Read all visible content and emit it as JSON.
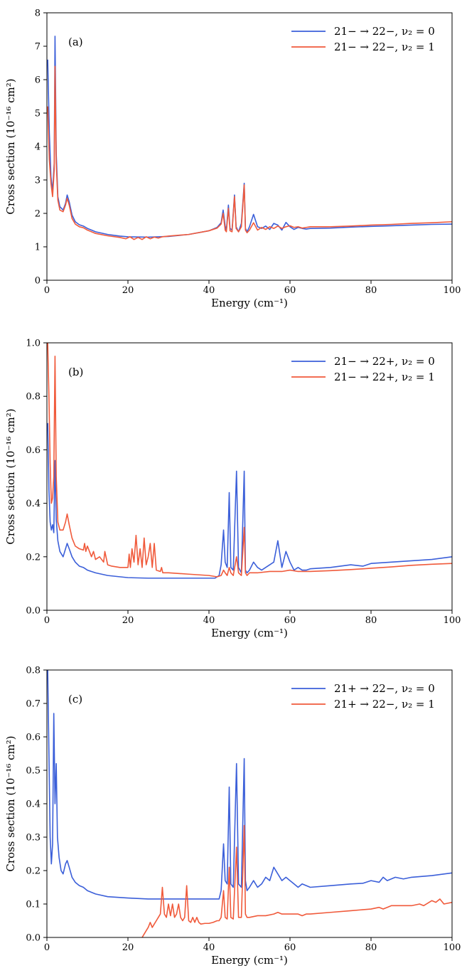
{
  "chart_data": [
    {
      "type": "line",
      "panel_label": "(a)",
      "xlabel": "Energy (cm⁻¹)",
      "ylabel": "Cross section (10⁻¹⁶ cm²)",
      "xlim": [
        0,
        100
      ],
      "ylim": [
        0,
        8
      ],
      "x_ticks": [
        0,
        20,
        40,
        60,
        80,
        100
      ],
      "y_ticks": [
        0,
        1,
        2,
        3,
        4,
        5,
        6,
        7,
        8
      ],
      "grid": false,
      "legend_position": "top-right",
      "series": [
        {
          "name": "21− → 22−, ν₂ = 0",
          "color": "#3b5fd9",
          "x": [
            0.2,
            0.6,
            1.0,
            1.4,
            1.8,
            2.0,
            2.3,
            2.7,
            3.2,
            4.0,
            4.6,
            5.0,
            5.5,
            6.2,
            7.0,
            8.0,
            9.0,
            10.0,
            12.0,
            15.0,
            18.0,
            20.0,
            25.0,
            30.0,
            35.0,
            40.0,
            42.0,
            43.0,
            43.5,
            44.0,
            44.3,
            44.8,
            45.2,
            45.7,
            46.3,
            46.7,
            47.3,
            48.0,
            48.7,
            49.0,
            49.4,
            50.0,
            51.0,
            52.0,
            53.0,
            54.0,
            55.0,
            56.0,
            57.0,
            58.0,
            59.0,
            60.0,
            61.0,
            62.0,
            63.0,
            64.0,
            65.0,
            70.0,
            75.0,
            80.0,
            85.0,
            90.0,
            95.0,
            100.0
          ],
          "values": [
            6.6,
            4.4,
            3.1,
            2.65,
            3.5,
            7.3,
            3.8,
            2.5,
            2.2,
            2.1,
            2.3,
            2.55,
            2.35,
            1.95,
            1.75,
            1.66,
            1.62,
            1.55,
            1.45,
            1.37,
            1.32,
            1.3,
            1.29,
            1.31,
            1.37,
            1.48,
            1.58,
            1.72,
            2.1,
            1.62,
            1.5,
            2.25,
            1.55,
            1.5,
            2.55,
            1.6,
            1.45,
            1.7,
            2.9,
            1.55,
            1.45,
            1.6,
            1.97,
            1.6,
            1.55,
            1.62,
            1.52,
            1.7,
            1.65,
            1.5,
            1.73,
            1.6,
            1.52,
            1.58,
            1.55,
            1.53,
            1.55,
            1.56,
            1.59,
            1.61,
            1.63,
            1.65,
            1.67,
            1.68
          ]
        },
        {
          "name": "21− → 22−, ν₂ = 1",
          "color": "#f05a3b",
          "x": [
            0.2,
            0.6,
            1.0,
            1.4,
            1.8,
            2.0,
            2.3,
            2.7,
            3.2,
            4.0,
            4.6,
            5.0,
            5.5,
            6.2,
            7.0,
            8.0,
            9.0,
            10.0,
            12.0,
            15.0,
            18.0,
            19.5,
            20.5,
            21.5,
            22.5,
            23.5,
            24.5,
            25.5,
            26.5,
            27.5,
            28.5,
            30.0,
            35.0,
            40.0,
            42.0,
            43.0,
            43.5,
            44.0,
            44.3,
            44.8,
            45.2,
            45.7,
            46.3,
            46.7,
            47.3,
            48.0,
            48.7,
            49.0,
            49.4,
            50.0,
            51.0,
            52.0,
            53.0,
            54.0,
            55.0,
            56.0,
            57.0,
            58.0,
            59.0,
            60.0,
            61.0,
            62.0,
            63.0,
            64.0,
            65.0,
            70.0,
            75.0,
            80.0,
            85.0,
            90.0,
            95.0,
            100.0
          ],
          "values": [
            5.2,
            3.6,
            2.9,
            2.5,
            3.3,
            6.4,
            3.5,
            2.4,
            2.1,
            2.05,
            2.25,
            2.45,
            2.25,
            1.85,
            1.68,
            1.6,
            1.57,
            1.5,
            1.4,
            1.33,
            1.28,
            1.24,
            1.3,
            1.22,
            1.28,
            1.22,
            1.3,
            1.24,
            1.29,
            1.26,
            1.3,
            1.32,
            1.37,
            1.48,
            1.56,
            1.68,
            2.0,
            1.5,
            1.45,
            2.15,
            1.48,
            1.45,
            2.5,
            1.55,
            1.45,
            1.6,
            2.85,
            1.5,
            1.42,
            1.5,
            1.72,
            1.5,
            1.58,
            1.52,
            1.6,
            1.55,
            1.62,
            1.55,
            1.6,
            1.63,
            1.58,
            1.6,
            1.56,
            1.58,
            1.6,
            1.6,
            1.62,
            1.65,
            1.67,
            1.7,
            1.72,
            1.75
          ]
        }
      ]
    },
    {
      "type": "line",
      "panel_label": "(b)",
      "xlabel": "Energy (cm⁻¹)",
      "ylabel": "Cross section (10⁻¹⁶ cm²)",
      "xlim": [
        0,
        100
      ],
      "ylim": [
        0,
        1
      ],
      "x_ticks": [
        0,
        20,
        40,
        60,
        80,
        100
      ],
      "y_ticks": [
        0.0,
        0.2,
        0.4,
        0.6,
        0.8,
        1.0
      ],
      "grid": false,
      "legend_position": "top-right",
      "series": [
        {
          "name": "21− → 22+, ν₂ = 0",
          "color": "#3b5fd9",
          "x": [
            0.2,
            0.5,
            0.8,
            1.1,
            1.4,
            1.7,
            2.0,
            2.3,
            2.7,
            3.2,
            4.0,
            4.6,
            5.0,
            5.5,
            6.2,
            7.0,
            8.0,
            9.0,
            10.0,
            12.0,
            15.0,
            20.0,
            25.0,
            30.0,
            35.0,
            40.0,
            41.5,
            42.5,
            43.0,
            43.6,
            44.0,
            44.5,
            45.0,
            45.4,
            46.0,
            46.8,
            47.3,
            48.0,
            48.7,
            49.0,
            49.4,
            50.0,
            51.0,
            52.0,
            53.0,
            54.0,
            55.0,
            56.0,
            57.0,
            58.0,
            59.0,
            60.0,
            61.0,
            62.0,
            63.0,
            64.0,
            65.0,
            70.0,
            75.0,
            78.0,
            80.0,
            85.0,
            90.0,
            95.0,
            100.0
          ],
          "values": [
            0.7,
            0.45,
            0.33,
            0.3,
            0.32,
            0.29,
            0.56,
            0.34,
            0.26,
            0.22,
            0.2,
            0.23,
            0.25,
            0.23,
            0.2,
            0.18,
            0.165,
            0.16,
            0.15,
            0.14,
            0.13,
            0.122,
            0.12,
            0.12,
            0.12,
            0.12,
            0.12,
            0.13,
            0.17,
            0.3,
            0.18,
            0.16,
            0.44,
            0.16,
            0.15,
            0.52,
            0.16,
            0.14,
            0.52,
            0.15,
            0.14,
            0.15,
            0.18,
            0.16,
            0.15,
            0.16,
            0.17,
            0.18,
            0.26,
            0.16,
            0.22,
            0.18,
            0.15,
            0.16,
            0.15,
            0.15,
            0.155,
            0.16,
            0.17,
            0.165,
            0.175,
            0.18,
            0.185,
            0.19,
            0.2
          ]
        },
        {
          "name": "21− → 22+, ν₂ = 1",
          "color": "#f05a3b",
          "x": [
            0.2,
            0.5,
            0.8,
            1.1,
            1.4,
            1.7,
            2.0,
            2.3,
            2.7,
            3.2,
            4.0,
            4.6,
            5.0,
            5.5,
            6.2,
            7.0,
            8.0,
            9.0,
            9.3,
            9.6,
            10.0,
            11.0,
            11.5,
            12.0,
            13.0,
            14.0,
            14.3,
            15.0,
            16.0,
            18.0,
            20.0,
            20.3,
            20.6,
            21.0,
            21.5,
            22.0,
            22.5,
            23.0,
            23.5,
            24.0,
            24.5,
            25.0,
            25.5,
            26.0,
            26.5,
            27.0,
            28.0,
            28.3,
            28.6,
            30.0,
            35.0,
            40.0,
            42.0,
            43.0,
            43.6,
            44.0,
            44.5,
            45.0,
            45.4,
            46.0,
            46.8,
            47.3,
            48.0,
            48.7,
            49.0,
            49.4,
            50.0,
            52.0,
            55.0,
            58.0,
            60.0,
            62.0,
            65.0,
            70.0,
            75.0,
            80.0,
            85.0,
            90.0,
            95.0,
            100.0
          ],
          "values": [
            1.0,
            0.8,
            0.55,
            0.4,
            0.42,
            0.5,
            0.95,
            0.5,
            0.33,
            0.3,
            0.3,
            0.33,
            0.36,
            0.32,
            0.27,
            0.24,
            0.23,
            0.225,
            0.25,
            0.22,
            0.24,
            0.2,
            0.22,
            0.19,
            0.2,
            0.18,
            0.22,
            0.17,
            0.165,
            0.16,
            0.16,
            0.21,
            0.16,
            0.23,
            0.18,
            0.28,
            0.17,
            0.23,
            0.16,
            0.27,
            0.17,
            0.2,
            0.25,
            0.16,
            0.25,
            0.15,
            0.145,
            0.16,
            0.14,
            0.14,
            0.135,
            0.13,
            0.125,
            0.13,
            0.15,
            0.14,
            0.13,
            0.16,
            0.14,
            0.13,
            0.2,
            0.14,
            0.13,
            0.31,
            0.14,
            0.13,
            0.14,
            0.14,
            0.145,
            0.145,
            0.15,
            0.145,
            0.145,
            0.148,
            0.152,
            0.157,
            0.162,
            0.168,
            0.172,
            0.175
          ]
        }
      ]
    },
    {
      "type": "line",
      "panel_label": "(c)",
      "xlabel": "Energy (cm⁻¹)",
      "ylabel": "Cross section (10⁻¹⁶ cm²)",
      "xlim": [
        0,
        100
      ],
      "ylim": [
        0,
        0.8
      ],
      "x_ticks": [
        0,
        20,
        40,
        60,
        80,
        100
      ],
      "y_ticks": [
        0.0,
        0.1,
        0.2,
        0.3,
        0.4,
        0.5,
        0.6,
        0.7,
        0.8
      ],
      "grid": false,
      "legend_position": "top-right",
      "series": [
        {
          "name": "21+ → 22−, ν₂ = 0",
          "color": "#3b5fd9",
          "x": [
            0.2,
            0.5,
            0.8,
            1.1,
            1.4,
            1.7,
            2.0,
            2.3,
            2.6,
            3.0,
            3.5,
            4.0,
            4.6,
            5.0,
            5.5,
            6.2,
            7.0,
            8.0,
            9.0,
            10.0,
            12.0,
            15.0,
            20.0,
            25.0,
            30.0,
            35.0,
            40.0,
            42.5,
            43.0,
            43.6,
            44.0,
            44.5,
            45.0,
            45.4,
            46.0,
            46.8,
            47.3,
            48.0,
            48.7,
            49.0,
            49.4,
            50.0,
            51.0,
            52.0,
            53.0,
            54.0,
            55.0,
            56.0,
            57.0,
            58.0,
            59.0,
            60.0,
            61.0,
            62.0,
            63.0,
            64.0,
            65.0,
            70.0,
            75.0,
            78.0,
            80.0,
            82.0,
            83.0,
            84.0,
            85.0,
            86.0,
            88.0,
            90.0,
            95.0,
            100.0
          ],
          "values": [
            0.8,
            0.55,
            0.3,
            0.22,
            0.28,
            0.67,
            0.4,
            0.52,
            0.3,
            0.24,
            0.2,
            0.19,
            0.22,
            0.23,
            0.21,
            0.18,
            0.165,
            0.155,
            0.15,
            0.14,
            0.13,
            0.122,
            0.118,
            0.115,
            0.115,
            0.115,
            0.115,
            0.115,
            0.14,
            0.28,
            0.17,
            0.16,
            0.45,
            0.16,
            0.15,
            0.52,
            0.16,
            0.15,
            0.535,
            0.17,
            0.14,
            0.15,
            0.17,
            0.15,
            0.16,
            0.18,
            0.17,
            0.21,
            0.19,
            0.17,
            0.18,
            0.17,
            0.16,
            0.15,
            0.16,
            0.155,
            0.15,
            0.155,
            0.16,
            0.162,
            0.17,
            0.165,
            0.18,
            0.17,
            0.175,
            0.18,
            0.175,
            0.18,
            0.185,
            0.193
          ]
        },
        {
          "name": "21+ → 22−, ν₂ = 1",
          "color": "#f05a3b",
          "x": [
            23.5,
            24.0,
            24.5,
            25.0,
            25.5,
            26.0,
            26.5,
            27.0,
            27.5,
            28.0,
            28.5,
            29.0,
            29.5,
            30.0,
            30.5,
            31.0,
            31.5,
            32.0,
            32.5,
            33.0,
            33.5,
            34.0,
            34.5,
            35.0,
            35.5,
            36.0,
            36.5,
            37.0,
            37.5,
            38.0,
            39.0,
            40.0,
            41.0,
            42.0,
            42.5,
            43.0,
            43.6,
            44.0,
            44.5,
            45.0,
            45.4,
            46.0,
            46.8,
            47.3,
            48.0,
            48.7,
            49.0,
            49.4,
            50.0,
            52.0,
            54.0,
            56.0,
            57.0,
            58.0,
            60.0,
            62.0,
            63.0,
            64.0,
            65.0,
            70.0,
            75.0,
            80.0,
            82.0,
            83.0,
            84.0,
            85.0,
            90.0,
            92.0,
            93.0,
            95.0,
            96.0,
            97.0,
            98.0,
            100.0
          ],
          "values": [
            0.0,
            0.01,
            0.02,
            0.03,
            0.045,
            0.03,
            0.04,
            0.05,
            0.06,
            0.07,
            0.15,
            0.07,
            0.06,
            0.1,
            0.065,
            0.1,
            0.06,
            0.07,
            0.1,
            0.06,
            0.05,
            0.06,
            0.155,
            0.05,
            0.045,
            0.06,
            0.045,
            0.06,
            0.045,
            0.04,
            0.042,
            0.042,
            0.045,
            0.05,
            0.05,
            0.06,
            0.14,
            0.06,
            0.055,
            0.21,
            0.06,
            0.055,
            0.27,
            0.06,
            0.06,
            0.335,
            0.07,
            0.06,
            0.06,
            0.065,
            0.065,
            0.07,
            0.075,
            0.07,
            0.07,
            0.07,
            0.065,
            0.07,
            0.07,
            0.075,
            0.08,
            0.085,
            0.09,
            0.085,
            0.09,
            0.095,
            0.095,
            0.1,
            0.095,
            0.11,
            0.105,
            0.115,
            0.1,
            0.105
          ]
        }
      ]
    }
  ]
}
